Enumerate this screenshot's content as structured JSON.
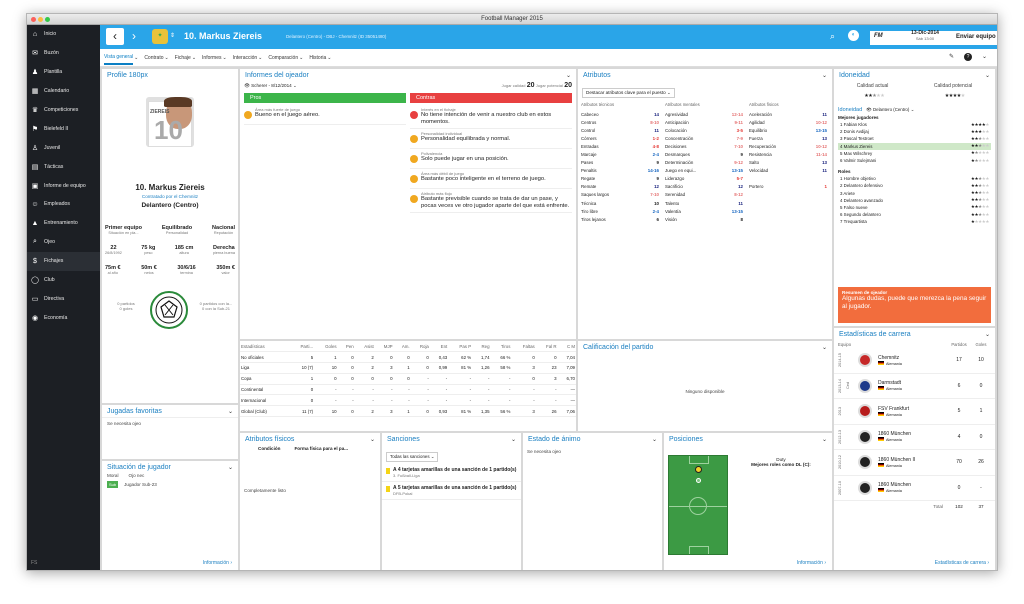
{
  "window": {
    "title": "Football Manager 2015"
  },
  "sidebar": {
    "items": [
      {
        "label": "Inicio",
        "icon": "home-icon"
      },
      {
        "label": "Buzón",
        "icon": "inbox-icon"
      },
      {
        "label": "Plantilla",
        "icon": "squad-icon"
      },
      {
        "label": "Calendario",
        "icon": "calendar-icon"
      },
      {
        "label": "Competiciones",
        "icon": "trophy-icon"
      },
      {
        "label": "Bielefeld II",
        "icon": "team-icon"
      },
      {
        "label": "Juvenil",
        "icon": "youth-icon"
      },
      {
        "label": "Tácticas",
        "icon": "tactics-icon"
      },
      {
        "label": "Informe de equipo",
        "icon": "report-icon"
      },
      {
        "label": "Empleados",
        "icon": "staff-icon"
      },
      {
        "label": "Entrenamiento",
        "icon": "training-icon"
      },
      {
        "label": "Ojeo",
        "icon": "scouting-icon"
      },
      {
        "label": "Fichajes",
        "icon": "transfers-icon"
      },
      {
        "label": "Club",
        "icon": "club-icon"
      },
      {
        "label": "Directiva",
        "icon": "board-icon"
      },
      {
        "label": "Economía",
        "icon": "finance-icon"
      }
    ],
    "footer": "FS"
  },
  "header": {
    "number": "10.",
    "name": "Markus Ziereis",
    "detail": "Delantero (Centro) - DBJ - Chemnitz (ID 35051480)",
    "date": "13-Dic-2014",
    "date_sub": "Sáb 13:00",
    "continue": "Enviar equipo",
    "fm": "FM"
  },
  "subnav": [
    "Vista general",
    "Contrato",
    "Fichaje",
    "Informes",
    "Interacción",
    "Comparación",
    "Historia"
  ],
  "profile": {
    "title": "Profile 180px",
    "shirt_name": "ZIEREIS",
    "shirt_number": "10",
    "name": "10. Markus Ziereis",
    "contract": "Contratado por el Chemnitz",
    "position": "Delantero (Centro)",
    "row1": [
      {
        "v": "Primer equipo",
        "l": "Situación en pla..."
      },
      {
        "v": "Equilibrado",
        "l": "Personalidad"
      },
      {
        "v": "Nacional",
        "l": "Reputación"
      }
    ],
    "row2": [
      {
        "v": "22",
        "l": "26/8/1992"
      },
      {
        "v": "75 kg",
        "l": "peso"
      },
      {
        "v": "185 cm",
        "l": "altura"
      },
      {
        "v": "Derecha",
        "l": "pierna buena"
      }
    ],
    "row3": [
      {
        "v": "75m €",
        "l": "al año"
      },
      {
        "v": "50m €",
        "l": "netos"
      },
      {
        "v": "30/6/16",
        "l": "termina"
      },
      {
        "v": "350m €",
        "l": "valor"
      }
    ],
    "left_stat": {
      "a": "0 partidos",
      "b": "0 goles"
    },
    "right_stat": {
      "a": "0 partidos con la...",
      "b": "0 con la Sub-21"
    }
  },
  "favmoves": {
    "title": "Jugadas favoritas",
    "text": "Se necesita ojeo"
  },
  "situation": {
    "title": "Situación de jugador",
    "moral_label": "Moral",
    "moral_val": "Ojo nec",
    "badge": "Sub",
    "badge_text": "Jugador Sub-23",
    "link": "Información"
  },
  "scout": {
    "title": "Informes del ojeador",
    "by": "Scherer - 8/12/2014",
    "rating_label": "Jugar calidad",
    "rating": "20",
    "pot_label": "Jugar potencial",
    "pot": "20",
    "pros_label": "Pros",
    "cons_label": "Contras",
    "pros": [
      {
        "h": "Área más fuerte de juego",
        "t": "Bueno en el juego aéreo.",
        "c": "#f0a820"
      }
    ],
    "cons": [
      {
        "h": "Interés en el fichaje",
        "t": "No tiene intención de venir a nuestro club en estos momentos.",
        "c": "#e84040"
      },
      {
        "h": "Personalidad individual",
        "t": "Personalidad equilibrada y normal.",
        "c": "#f0a820"
      },
      {
        "h": "Polivalencia",
        "t": "Solo puede jugar en una posición.",
        "c": "#f0a820"
      },
      {
        "h": "Área más débil de juego",
        "t": "Bastante poco inteligente en el terreno de juego.",
        "c": "#f0a820"
      },
      {
        "h": "Atributo más flojo",
        "t": "Bastante previsible cuando se trata de dar un pase, y pocas veces ve otro jugador aparte del que está enfrente.",
        "c": "#f0a820"
      }
    ]
  },
  "stats": {
    "headers": [
      "Estadísticas",
      "Parti...",
      "Goles",
      "Pen",
      "Asist",
      "MJP",
      "Am.",
      "Roja",
      "Ent",
      "Pas P",
      "Reg",
      "Tiros",
      "Faltas",
      "Fal R",
      "C M"
    ],
    "rows": [
      [
        "No oficiales",
        "5",
        "1",
        "0",
        "2",
        "0",
        "0",
        "0",
        "0,43",
        "62 %",
        "1,74",
        "66 %",
        "0",
        "0",
        "7,04"
      ],
      [
        "Liga",
        "10 (7)",
        "10",
        "0",
        "2",
        "3",
        "1",
        "0",
        "0,99",
        "81 %",
        "1,26",
        "58 %",
        "3",
        "23",
        "7,09"
      ],
      [
        "Copa",
        "1",
        "0",
        "0",
        "0",
        "0",
        "0",
        "-",
        "-",
        "-",
        "-",
        "-",
        "0",
        "3",
        "6,70"
      ],
      [
        "Continental",
        "0",
        "-",
        "-",
        "-",
        "-",
        "-",
        "-",
        "-",
        "-",
        "-",
        "-",
        "-",
        "-",
        "—"
      ],
      [
        "Internacional",
        "0",
        "-",
        "-",
        "-",
        "-",
        "-",
        "-",
        "-",
        "-",
        "-",
        "-",
        "-",
        "-",
        "—"
      ],
      [
        "Global (Club)",
        "11 (7)",
        "10",
        "0",
        "2",
        "3",
        "1",
        "0",
        "0,93",
        "81 %",
        "1,35",
        "56 %",
        "3",
        "26",
        "7,06"
      ]
    ]
  },
  "attributes": {
    "title": "Atributos",
    "dropdown": "Destacar atributos clave para el puesto",
    "columns": [
      {
        "h": "Atributos técnicos",
        "items": [
          [
            "Cabeceo",
            "14"
          ],
          [
            "Centros",
            "8-10"
          ],
          [
            "Control",
            "11"
          ],
          [
            "Córners",
            "1-2"
          ],
          [
            "Entradas",
            "4-8"
          ],
          [
            "Marcaje",
            "2-4"
          ],
          [
            "Pases",
            "9"
          ],
          [
            "Penaltis",
            "14-16"
          ],
          [
            "Regate",
            "9"
          ],
          [
            "Remate",
            "12"
          ],
          [
            "Saques largos",
            "7-10"
          ],
          [
            "Técnica",
            "10"
          ],
          [
            "Tiro libre",
            "2-4"
          ],
          [
            "Tiros lejanos",
            "6"
          ]
        ]
      },
      {
        "h": "Atributos mentales",
        "items": [
          [
            "Agresividad",
            "12-14"
          ],
          [
            "Anticipación",
            "9-11"
          ],
          [
            "Colocación",
            "3-5"
          ],
          [
            "Concentración",
            "7-9"
          ],
          [
            "Decisiones",
            "7-10"
          ],
          [
            "Desmarques",
            "9"
          ],
          [
            "Determinación",
            "9-12"
          ],
          [
            "Juego en equi...",
            "13-15"
          ],
          [
            "Liderazgo",
            "5-7"
          ],
          [
            "Sacrificio",
            "12"
          ],
          [
            "Serenidad",
            "8-12"
          ],
          [
            "Talento",
            "11"
          ],
          [
            "Valentía",
            "13-15"
          ],
          [
            "Visión",
            "8"
          ]
        ]
      },
      {
        "h": "Atributos físicos",
        "items": [
          [
            "Aceleración",
            "11"
          ],
          [
            "Agilidad",
            "10-12"
          ],
          [
            "Equilibrio",
            "13-15"
          ],
          [
            "Fuerza",
            "13"
          ],
          [
            "Recuperación",
            "10-12"
          ],
          [
            "Resistencia",
            "11-14"
          ],
          [
            "Salto",
            "13"
          ],
          [
            "Velocidad",
            "11"
          ],
          [
            "",
            ""
          ],
          [
            "Portero",
            "1"
          ]
        ]
      }
    ]
  },
  "suitability": {
    "title": "Idoneidad",
    "cur_label": "Calidad actual",
    "pot_label": "Calidad potencial",
    "cur_stars": 2.5,
    "pot_stars": 4,
    "sub_title": "Idoneidad",
    "sub_pos": "Delantero (Centro)",
    "best_label": "Mejores jugadores",
    "players": [
      {
        "n": "1  Fabian Klos",
        "s": 4
      },
      {
        "n": "2  Donis Avdijaj",
        "s": 3
      },
      {
        "n": "3  Pascal Testroet",
        "s": 2.5
      },
      {
        "n": "4  Markus Ziereis",
        "s": 2.5
      },
      {
        "n": "5  Max Wilschrey",
        "s": 1.5
      },
      {
        "n": "6  Valmir Sulejmani",
        "s": 1.5
      }
    ],
    "roles_label": "Roles",
    "roles": [
      {
        "n": "1  Hombre objetivo",
        "s": 2.5
      },
      {
        "n": "2  Delantero defensivo",
        "s": 2.5
      },
      {
        "n": "3  Ariete",
        "s": 2.5
      },
      {
        "n": "4  Delantero avanzado",
        "s": 2.5
      },
      {
        "n": "5  Falso nueve",
        "s": 2.5
      },
      {
        "n": "6  Segundo delantero",
        "s": 2.5
      },
      {
        "n": "7  Trequartista",
        "s": 1
      }
    ],
    "summary_title": "Resumen de ojeador",
    "summary": "Algunas dudas, puede que merezca la pena seguir al jugador."
  },
  "rating": {
    "title": "Calificación del partido",
    "text": "Ninguno disponible"
  },
  "career": {
    "title": "Estadísticas de carrera",
    "h_team": "Equipo",
    "h_apps": "Partidos",
    "h_goals": "Goles",
    "rows": [
      {
        "yr": "2014-15",
        "team": "Chemnitz",
        "nat": "Alemania",
        "a": "17",
        "g": "10"
      },
      {
        "yr": "2013-14",
        "cesion": "Ced",
        "team": "Darmstadt",
        "nat": "Alemania",
        "a": "6",
        "g": "0"
      },
      {
        "yr": "2013",
        "team": "FSV Frankfurt",
        "nat": "Alemania",
        "a": "5",
        "g": "1"
      },
      {
        "yr": "2012-13",
        "team": "1860 München",
        "nat": "Alemania",
        "a": "4",
        "g": "0"
      },
      {
        "yr": "2010-12",
        "team": "1860 München II",
        "nat": "Alemania",
        "a": "70",
        "g": "26"
      },
      {
        "yr": "2007-10",
        "team": "1860 München",
        "nat": "Alemania",
        "a": "0",
        "g": "-"
      }
    ],
    "total_label": "Total",
    "total_a": "102",
    "total_g": "37",
    "link": "Estadísticas de carrera"
  },
  "phys": {
    "title": "Atributos físicos",
    "c1": "Condición",
    "c2": "Forma física para el pa...",
    "text": "Completamente listo"
  },
  "sanctions": {
    "title": "Sanciones",
    "filter": "Todas las sanciones",
    "items": [
      {
        "t": "A 4 tarjetas amarillas de una sanción de 1 partido(s)",
        "s": "3. Fußball-Liga"
      },
      {
        "t": "A 5 tarjetas amarillas de una sanción de 1 partido(s)",
        "s": "DFB-Pokal"
      }
    ]
  },
  "morale": {
    "title": "Estado de ánimo",
    "text": "Se necesita ojeo"
  },
  "positions": {
    "title": "Posiciones",
    "duty": "Duty",
    "best": "Mejores roles como DL (C):",
    "link": "Información"
  }
}
